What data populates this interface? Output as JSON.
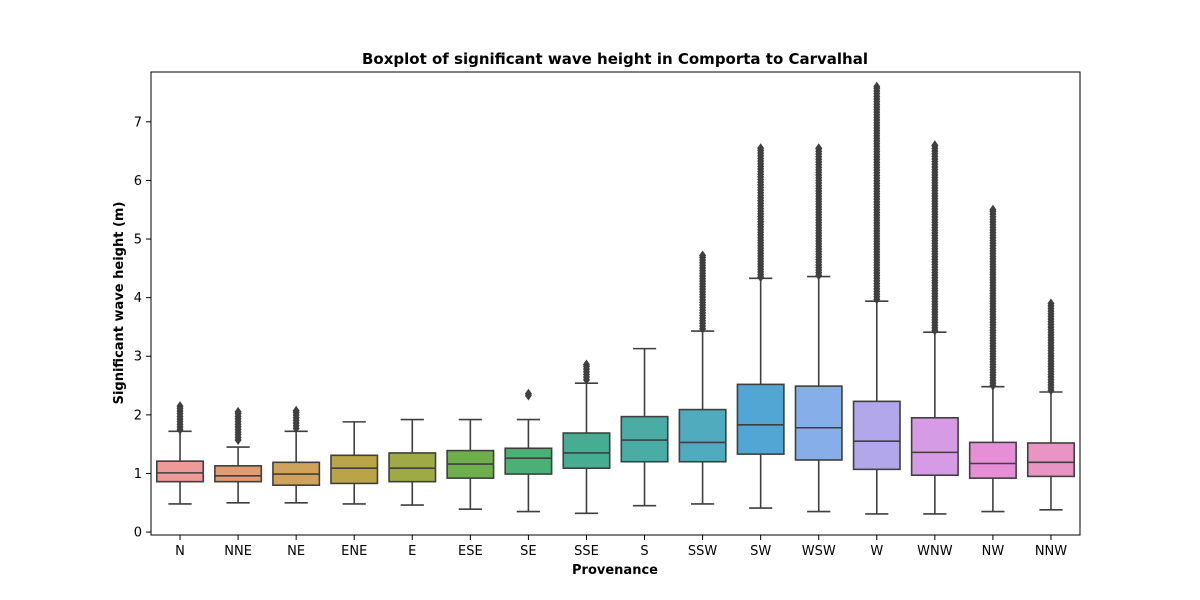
{
  "chart_data": {
    "type": "box",
    "title": "Boxplot of significant wave height in Comporta to Carvalhal",
    "xlabel": "Provenance",
    "ylabel": "Significant wave height (m)",
    "ylim": [
      -0.05,
      7.85
    ],
    "yticks": [
      0,
      1,
      2,
      3,
      4,
      5,
      6,
      7
    ],
    "grid": false,
    "categories": [
      "N",
      "NNE",
      "NE",
      "ENE",
      "E",
      "ESE",
      "SE",
      "SSE",
      "S",
      "SSW",
      "SW",
      "WSW",
      "W",
      "WNW",
      "NW",
      "NNW"
    ],
    "series": [
      {
        "category": "N",
        "color": "#ee9a97",
        "whisker_low": 0.48,
        "q1": 0.86,
        "median": 1.01,
        "q3": 1.21,
        "whisker_high": 1.72,
        "outliers_low": 1.75,
        "outliers_high": 2.15
      },
      {
        "category": "NNE",
        "color": "#e29c72",
        "whisker_low": 0.5,
        "q1": 0.86,
        "median": 0.96,
        "q3": 1.13,
        "whisker_high": 1.45,
        "outliers_low": 1.57,
        "outliers_high": 2.05
      },
      {
        "category": "NE",
        "color": "#d0a35a",
        "whisker_low": 0.5,
        "q1": 0.8,
        "median": 0.99,
        "q3": 1.19,
        "whisker_high": 1.72,
        "outliers_low": 1.77,
        "outliers_high": 2.07
      },
      {
        "category": "ENE",
        "color": "#b9a448",
        "whisker_low": 0.48,
        "q1": 0.83,
        "median": 1.09,
        "q3": 1.31,
        "whisker_high": 1.88,
        "outliers_low": null,
        "outliers_high": null
      },
      {
        "category": "E",
        "color": "#9eaa46",
        "whisker_low": 0.46,
        "q1": 0.86,
        "median": 1.09,
        "q3": 1.35,
        "whisker_high": 1.92,
        "outliers_low": null,
        "outliers_high": null
      },
      {
        "category": "ESE",
        "color": "#6fae4c",
        "whisker_low": 0.39,
        "q1": 0.92,
        "median": 1.16,
        "q3": 1.39,
        "whisker_high": 1.92,
        "outliers_low": null,
        "outliers_high": null
      },
      {
        "category": "SE",
        "color": "#4ab075",
        "whisker_low": 0.35,
        "q1": 0.99,
        "median": 1.26,
        "q3": 1.43,
        "whisker_high": 1.92,
        "outliers_low": 2.33,
        "outliers_high": 2.36
      },
      {
        "category": "SSE",
        "color": "#47ad92",
        "whisker_low": 0.32,
        "q1": 1.09,
        "median": 1.35,
        "q3": 1.69,
        "whisker_high": 2.54,
        "outliers_low": 2.6,
        "outliers_high": 2.86
      },
      {
        "category": "S",
        "color": "#4aaca5",
        "whisker_low": 0.45,
        "q1": 1.2,
        "median": 1.57,
        "q3": 1.97,
        "whisker_high": 3.13,
        "outliers_low": null,
        "outliers_high": null
      },
      {
        "category": "SSW",
        "color": "#4fabbd",
        "whisker_low": 0.48,
        "q1": 1.2,
        "median": 1.53,
        "q3": 2.09,
        "whisker_high": 3.43,
        "outliers_low": 3.47,
        "outliers_high": 4.72
      },
      {
        "category": "SW",
        "color": "#52a6d4",
        "whisker_low": 0.41,
        "q1": 1.33,
        "median": 1.83,
        "q3": 2.52,
        "whisker_high": 4.33,
        "outliers_low": 4.35,
        "outliers_high": 6.55
      },
      {
        "category": "WSW",
        "color": "#86aee8",
        "whisker_low": 0.35,
        "q1": 1.23,
        "median": 1.78,
        "q3": 2.49,
        "whisker_high": 4.36,
        "outliers_low": 4.38,
        "outliers_high": 6.55
      },
      {
        "category": "W",
        "color": "#b3a7ec",
        "whisker_low": 0.31,
        "q1": 1.07,
        "median": 1.55,
        "q3": 2.23,
        "whisker_high": 3.94,
        "outliers_low": 3.97,
        "outliers_high": 7.6
      },
      {
        "category": "WNW",
        "color": "#d59be5",
        "whisker_low": 0.31,
        "q1": 0.97,
        "median": 1.36,
        "q3": 1.95,
        "whisker_high": 3.41,
        "outliers_low": 3.44,
        "outliers_high": 6.6
      },
      {
        "category": "NW",
        "color": "#e78fd6",
        "whisker_low": 0.35,
        "q1": 0.92,
        "median": 1.17,
        "q3": 1.53,
        "whisker_high": 2.48,
        "outliers_low": 2.5,
        "outliers_high": 5.5
      },
      {
        "category": "NNW",
        "color": "#e895c3",
        "whisker_low": 0.38,
        "q1": 0.95,
        "median": 1.19,
        "q3": 1.52,
        "whisker_high": 2.39,
        "outliers_low": 2.42,
        "outliers_high": 3.9
      }
    ]
  }
}
